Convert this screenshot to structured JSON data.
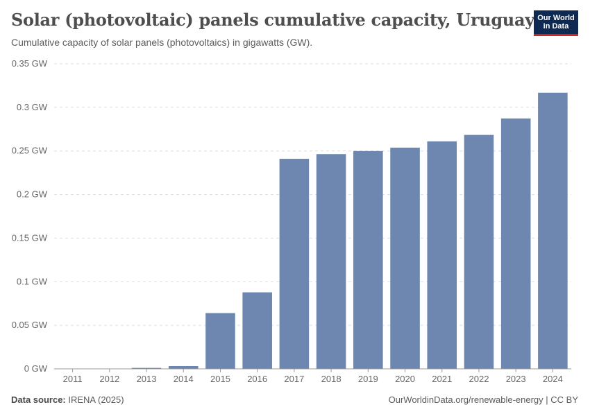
{
  "header": {
    "title": "Solar (photovoltaic) panels cumulative capacity, Uruguay",
    "subtitle": "Cumulative capacity of solar panels (photovoltaics) in gigawatts (GW).",
    "logo_line1": "Our World",
    "logo_line2": "in Data"
  },
  "footer": {
    "source_label": "Data source:",
    "source_value": "IRENA (2025)",
    "url": "OurWorldinData.org/renewable-energy | CC BY"
  },
  "colors": {
    "bar": "#6d87b0",
    "grid": "#dddddd",
    "axis": "#999999",
    "logo_bg": "#0f2a52",
    "logo_accent": "#ce261e"
  },
  "chart_data": {
    "type": "bar",
    "title": "Solar (photovoltaic) panels cumulative capacity, Uruguay",
    "xlabel": "",
    "ylabel": "",
    "unit": "GW",
    "ylim": [
      0,
      0.35
    ],
    "yticks": [
      0,
      0.05,
      0.1,
      0.15,
      0.2,
      0.25,
      0.3,
      0.35
    ],
    "ytick_labels": [
      "0 GW",
      "0.05 GW",
      "0.1 GW",
      "0.15 GW",
      "0.2 GW",
      "0.25 GW",
      "0.3 GW",
      "0.35 GW"
    ],
    "categories": [
      "2011",
      "2012",
      "2013",
      "2014",
      "2015",
      "2016",
      "2017",
      "2018",
      "2019",
      "2020",
      "2021",
      "2022",
      "2023",
      "2024"
    ],
    "values": [
      0.0002,
      0.0002,
      0.0011,
      0.0032,
      0.064,
      0.0878,
      0.241,
      0.2464,
      0.2499,
      0.2538,
      0.261,
      0.2684,
      0.2873,
      0.3168
    ],
    "grid": true,
    "legend": "none"
  }
}
